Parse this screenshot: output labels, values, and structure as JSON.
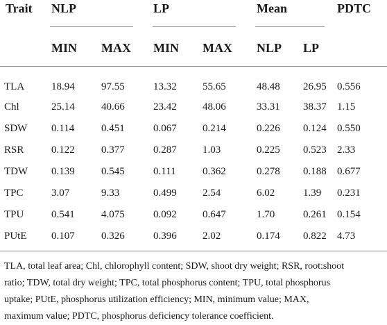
{
  "table": {
    "group_headers": {
      "trait": "Trait",
      "nlp": "NLP",
      "lp": "LP",
      "mean": "Mean",
      "pdtc": "PDTC"
    },
    "sub_headers": [
      "MIN",
      "MAX",
      "MIN",
      "MAX",
      "NLP",
      "LP"
    ],
    "rows": [
      [
        "TLA",
        "18.94",
        "97.55",
        "13.32",
        "55.65",
        "48.48",
        "26.95",
        "0.556"
      ],
      [
        "Chl",
        "25.14",
        "40.66",
        "23.42",
        "48.06",
        "33.31",
        "38.37",
        "1.15"
      ],
      [
        "SDW",
        "0.114",
        "0.451",
        "0.067",
        "0.214",
        "0.226",
        "0.124",
        "0.550"
      ],
      [
        "RSR",
        "0.122",
        "0.377",
        "0.287",
        "1.03",
        "0.225",
        "0.523",
        "2.33"
      ],
      [
        "TDW",
        "0.139",
        "0.545",
        "0.111",
        "0.362",
        "0.278",
        "0.188",
        "0.677"
      ],
      [
        "TPC",
        "3.07",
        "9.33",
        "0.499",
        "2.54",
        "6.02",
        "1.39",
        "0.231"
      ],
      [
        "TPU",
        "0.541",
        "4.075",
        "0.092",
        "0.647",
        "1.70",
        "0.261",
        "0.154"
      ],
      [
        "PUtE",
        "0.107",
        "0.326",
        "0.396",
        "2.02",
        "0.174",
        "0.822",
        "4.73"
      ]
    ]
  },
  "footnote": {
    "lines": [
      "TLA, total leaf area; Chl, chlorophyll content; SDW, shoot dry weight; RSR, root:shoot",
      "ratio; TDW, total dry weight; TPC, total phosphorus content; TPU, total phosphorus",
      "uptake; PUtE, phosphorus utilization efficiency; MIN, minimum value; MAX,",
      "maximum value; PDTC, phosphorus deficiency tolerance coefficient."
    ]
  }
}
